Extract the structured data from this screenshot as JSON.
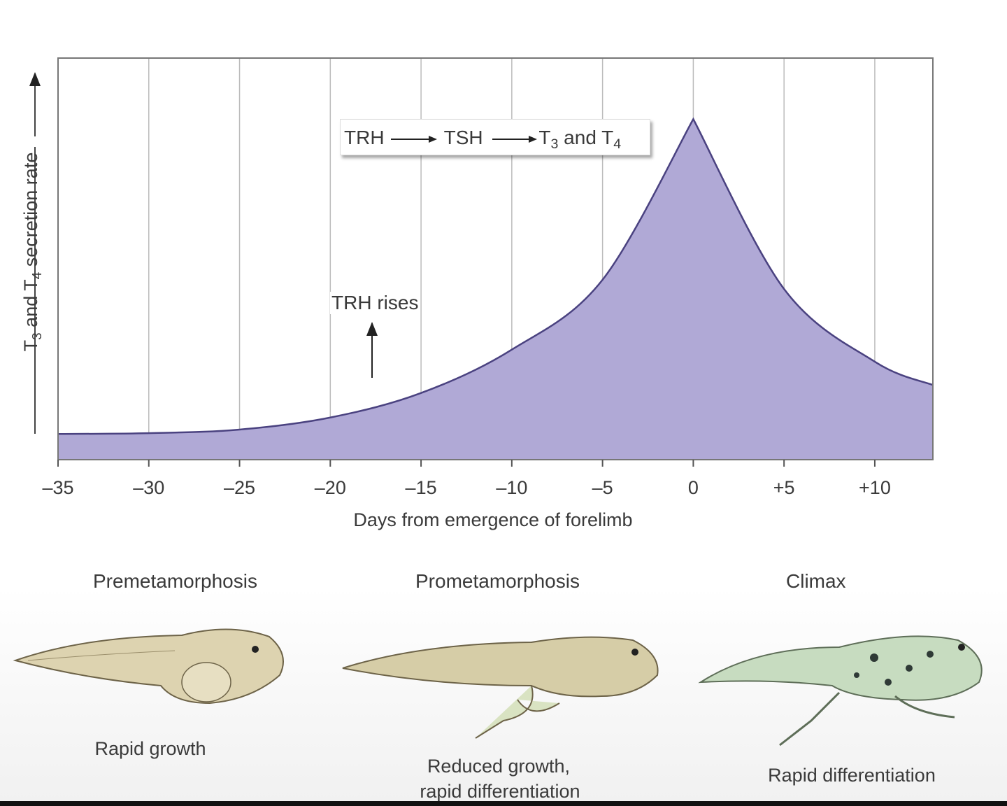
{
  "chart_data": {
    "type": "area",
    "xlabel": "Days from emergence of forelimb",
    "ylabel_parts": [
      "T",
      "3",
      " and T",
      "4",
      " secretion rate"
    ],
    "xlim": [
      -35,
      13.2
    ],
    "ylim": [
      0,
      100
    ],
    "x_ticks": [
      -35,
      -30,
      -25,
      -20,
      -15,
      -10,
      -5,
      0,
      5,
      10
    ],
    "x_tick_labels": [
      "–35",
      "–30",
      "–25",
      "–20",
      "–15",
      "–10",
      "–5",
      "0",
      "+5",
      "+10"
    ],
    "grid": "vertical",
    "series": [
      {
        "x": [
          -35,
          -30,
          -25,
          -20,
          -15,
          -10,
          -5,
          0,
          5,
          10,
          13.2
        ],
        "y": [
          6.4,
          6.6,
          7.5,
          10.5,
          16.6,
          27.4,
          44.8,
          84.8,
          42.5,
          24.4,
          18.6
        ]
      }
    ],
    "fill_color": "#b0a9d6",
    "line_color": "#4a4280",
    "annotations": {
      "hormone_cascade": {
        "a": "TRH",
        "b": "TSH",
        "c1": "T",
        "c2": "3",
        "c3": " and T",
        "c4": "4"
      },
      "trh_rises": {
        "text": "TRH rises",
        "x": -17.7
      }
    }
  },
  "phases": [
    {
      "label": "Premetamorphosis",
      "caption_lines": [
        "Rapid growth"
      ]
    },
    {
      "label": "Prometamorphosis",
      "caption_lines": [
        "Reduced growth,",
        "rapid differentiation"
      ]
    },
    {
      "label": "Climax",
      "caption_lines": [
        "Rapid differentiation"
      ]
    }
  ]
}
